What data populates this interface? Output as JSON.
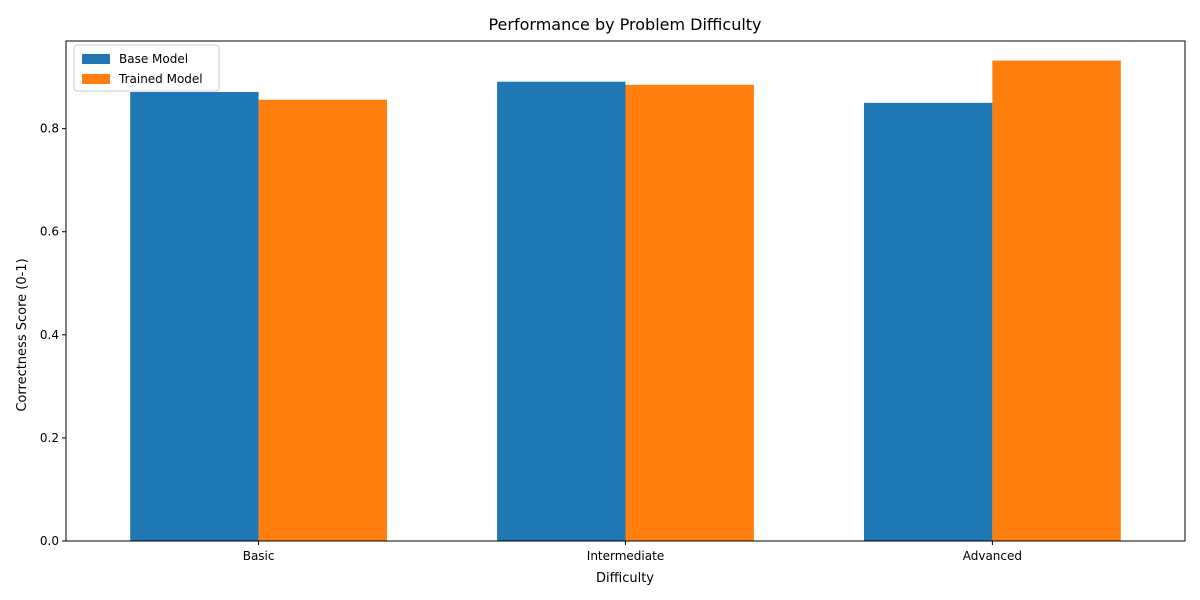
{
  "chart_data": {
    "type": "bar",
    "title": "Performance by Problem Difficulty",
    "xlabel": "Difficulty",
    "ylabel": "Correctness Score (0-1)",
    "categories": [
      "Basic",
      "Intermediate",
      "Advanced"
    ],
    "series": [
      {
        "name": "Base Model",
        "color": "#1f77b4",
        "values": [
          0.871,
          0.891,
          0.85
        ]
      },
      {
        "name": "Trained Model",
        "color": "#ff7f0e",
        "values": [
          0.856,
          0.885,
          0.932
        ]
      }
    ],
    "ylim": [
      0,
      0.97
    ],
    "yticks": [
      "0.0",
      "0.2",
      "0.4",
      "0.6",
      "0.8"
    ],
    "grid": false,
    "legend_position": "top-left"
  }
}
